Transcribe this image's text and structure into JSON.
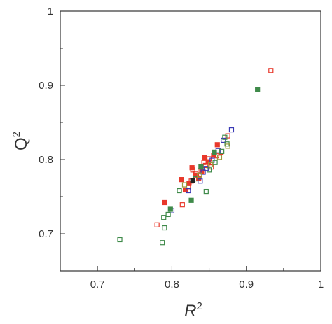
{
  "chart_data": {
    "type": "scatter",
    "title": "",
    "xlabel": "R",
    "xlabel_sup": "2",
    "ylabel": "Q",
    "ylabel_sup": "2",
    "xlim": [
      0.65,
      1.0
    ],
    "ylim": [
      0.65,
      1.0
    ],
    "x_ticks": [
      0.7,
      0.8,
      0.9,
      1.0
    ],
    "x_tick_labels": [
      "0.7",
      "0.8",
      "0.9",
      "1"
    ],
    "y_ticks": [
      0.7,
      0.8,
      0.9,
      1.0
    ],
    "y_tick_labels": [
      "0.7",
      "0.8",
      "0.9",
      "1"
    ],
    "grid": false,
    "legend": "none",
    "series": [
      {
        "color": "#e8382b",
        "marker": "open-square",
        "points": [
          [
            0.78,
            0.712
          ],
          [
            0.814,
            0.739
          ],
          [
            0.822,
            0.762
          ],
          [
            0.826,
            0.771
          ],
          [
            0.832,
            0.781
          ],
          [
            0.838,
            0.785
          ],
          [
            0.845,
            0.792
          ],
          [
            0.85,
            0.801
          ],
          [
            0.853,
            0.79
          ],
          [
            0.86,
            0.805
          ],
          [
            0.866,
            0.81
          ],
          [
            0.875,
            0.832
          ],
          [
            0.933,
            0.92
          ],
          [
            0.828,
            0.786
          ],
          [
            0.843,
            0.796
          ]
        ]
      },
      {
        "color": "#e8382b",
        "marker": "filled-square",
        "points": [
          [
            0.79,
            0.742
          ],
          [
            0.813,
            0.773
          ],
          [
            0.823,
            0.768
          ],
          [
            0.827,
            0.789
          ],
          [
            0.833,
            0.779
          ],
          [
            0.84,
            0.784
          ],
          [
            0.844,
            0.803
          ],
          [
            0.849,
            0.797
          ],
          [
            0.856,
            0.806
          ],
          [
            0.861,
            0.82
          ],
          [
            0.818,
            0.759
          ],
          [
            0.836,
            0.775
          ]
        ]
      },
      {
        "color": "#3a3ab5",
        "marker": "open-square",
        "points": [
          [
            0.8,
            0.731
          ],
          [
            0.822,
            0.758
          ],
          [
            0.838,
            0.771
          ],
          [
            0.846,
            0.788
          ],
          [
            0.854,
            0.799
          ],
          [
            0.862,
            0.812
          ],
          [
            0.869,
            0.826
          ],
          [
            0.88,
            0.84
          ],
          [
            0.842,
            0.783
          ]
        ]
      },
      {
        "color": "#3f8a4a",
        "marker": "open-square",
        "points": [
          [
            0.73,
            0.692
          ],
          [
            0.787,
            0.688
          ],
          [
            0.79,
            0.708
          ],
          [
            0.789,
            0.722
          ],
          [
            0.795,
            0.726
          ],
          [
            0.81,
            0.758
          ],
          [
            0.846,
            0.757
          ],
          [
            0.832,
            0.774
          ],
          [
            0.85,
            0.786
          ],
          [
            0.858,
            0.796
          ],
          [
            0.867,
            0.811
          ],
          [
            0.874,
            0.821
          ],
          [
            0.871,
            0.83
          ]
        ]
      },
      {
        "color": "#3f8a4a",
        "marker": "filled-square",
        "points": [
          [
            0.915,
            0.894
          ],
          [
            0.826,
            0.745
          ],
          [
            0.798,
            0.733
          ],
          [
            0.839,
            0.79
          ],
          [
            0.857,
            0.81
          ]
        ]
      },
      {
        "color": "#9a9a3a",
        "marker": "open-square",
        "points": [
          [
            0.817,
            0.766
          ],
          [
            0.837,
            0.779
          ],
          [
            0.852,
            0.793
          ],
          [
            0.864,
            0.803
          ],
          [
            0.875,
            0.818
          ]
        ]
      },
      {
        "color": "#222222",
        "marker": "filled-square",
        "points": [
          [
            0.828,
            0.772
          ]
        ]
      }
    ]
  }
}
